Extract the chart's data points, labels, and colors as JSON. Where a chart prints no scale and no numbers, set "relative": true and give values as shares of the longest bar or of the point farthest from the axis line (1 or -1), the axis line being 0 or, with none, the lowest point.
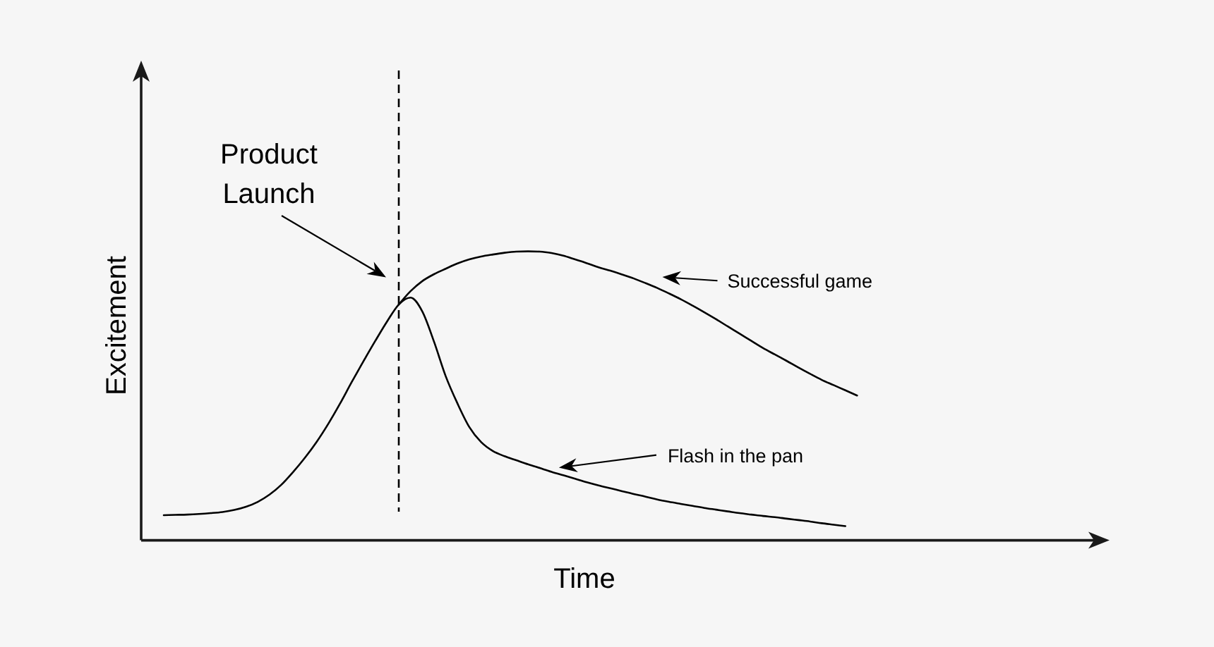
{
  "chart_data": {
    "type": "line",
    "relative": true,
    "xlabel": "Time",
    "ylabel": "Excitement",
    "annotations": [
      "Product Launch"
    ],
    "legend": "right",
    "categories": [
      null,
      null,
      null,
      null,
      null,
      null,
      null,
      null,
      null,
      null,
      null,
      null,
      null,
      null,
      null,
      null,
      null,
      null,
      null,
      null,
      null,
      null,
      null,
      null,
      null,
      null,
      null,
      null,
      null,
      null,
      null,
      null,
      null,
      null,
      null,
      null,
      null,
      null,
      null,
      null,
      null,
      null,
      null,
      null,
      null,
      null,
      null,
      null,
      null,
      null,
      null,
      null,
      null,
      null,
      null,
      null,
      null,
      null,
      null,
      null
    ],
    "series": [
      {
        "name": "Successful game",
        "color": "#000000",
        "values": [
          null,
          null,
          null,
          null,
          null,
          null,
          null,
          null,
          null,
          null,
          null,
          null,
          null,
          null,
          null,
          null,
          null,
          null,
          null,
          null,
          0.816,
          0.862,
          0.897,
          0.921,
          0.94,
          0.958,
          0.972,
          0.982,
          0.989,
          0.995,
          0.999,
          1.0,
          0.999,
          0.994,
          0.985,
          0.972,
          0.959,
          0.945,
          0.933,
          0.92,
          0.906,
          0.89,
          0.873,
          0.854,
          0.834,
          0.812,
          0.789,
          0.765,
          0.74,
          0.715,
          0.69,
          0.665,
          0.643,
          0.621,
          0.598,
          0.576,
          0.555,
          0.537,
          0.519,
          0.501
        ]
      },
      {
        "name": "Flash in the pan",
        "color": "#000000",
        "values": [
          0.087,
          0.088,
          0.089,
          0.091,
          0.094,
          0.098,
          0.105,
          0.116,
          0.133,
          0.158,
          0.192,
          0.236,
          0.285,
          0.34,
          0.403,
          0.473,
          0.548,
          0.62,
          0.69,
          0.757,
          0.816,
          0.84,
          0.792,
          0.687,
          0.567,
          0.473,
          0.392,
          0.34,
          0.309,
          0.291,
          0.277,
          0.263,
          0.25,
          0.237,
          0.225,
          0.213,
          0.201,
          0.19,
          0.18,
          0.17,
          0.16,
          0.151,
          0.141,
          0.133,
          0.126,
          0.119,
          0.112,
          0.106,
          0.1,
          0.094,
          0.089,
          0.084,
          0.08,
          0.075,
          0.07,
          0.065,
          0.059,
          0.054,
          0.049,
          null
        ]
      }
    ]
  }
}
